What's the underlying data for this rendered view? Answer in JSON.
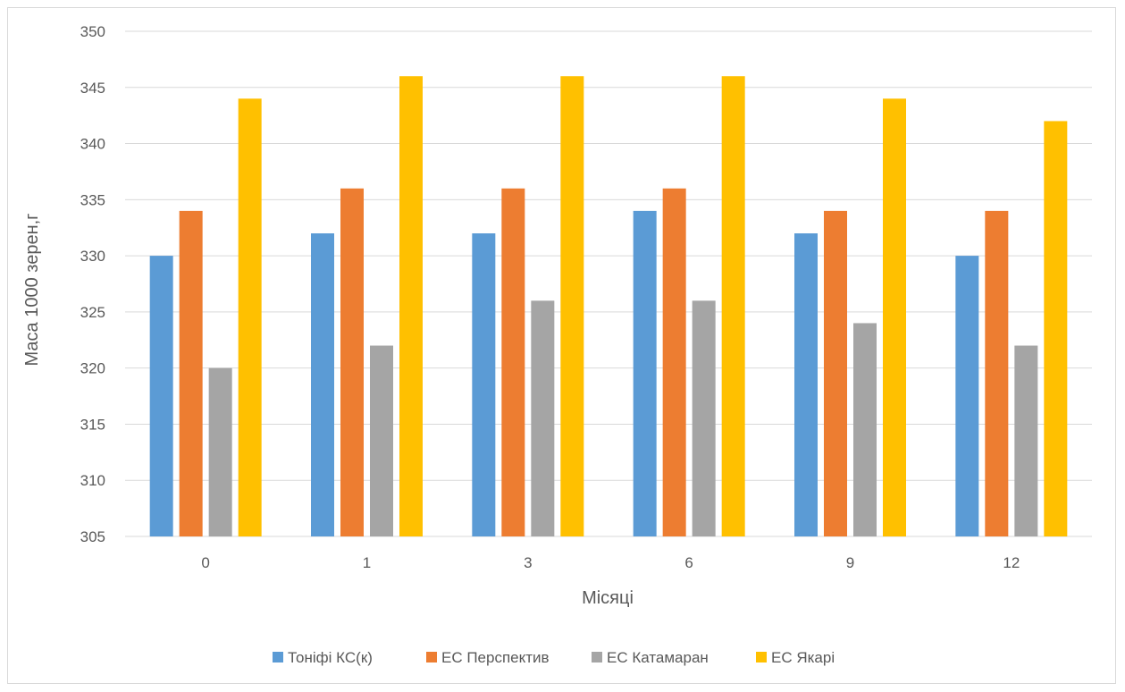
{
  "chart_data": {
    "type": "bar",
    "title": "",
    "xlabel": "Місяці",
    "ylabel": "Маса 1000 зерен,г",
    "categories": [
      "0",
      "1",
      "3",
      "6",
      "9",
      "12"
    ],
    "ylim": [
      305,
      350
    ],
    "yticks": [
      305,
      310,
      315,
      320,
      325,
      330,
      335,
      340,
      345,
      350
    ],
    "grid": true,
    "legend_position": "bottom",
    "series": [
      {
        "name": "Тоніфі КС(к)",
        "color": "#5b9bd5",
        "values": [
          330,
          332,
          332,
          334,
          332,
          330
        ]
      },
      {
        "name": "ЕС Перспектив",
        "color": "#ed7d31",
        "values": [
          334,
          336,
          336,
          336,
          334,
          334
        ]
      },
      {
        "name": "ЕС Катамаран",
        "color": "#a5a5a5",
        "values": [
          320,
          322,
          326,
          326,
          324,
          322
        ]
      },
      {
        "name": "ЕС Якарі",
        "color": "#ffc000",
        "values": [
          344,
          346,
          346,
          346,
          344,
          342
        ]
      }
    ]
  }
}
